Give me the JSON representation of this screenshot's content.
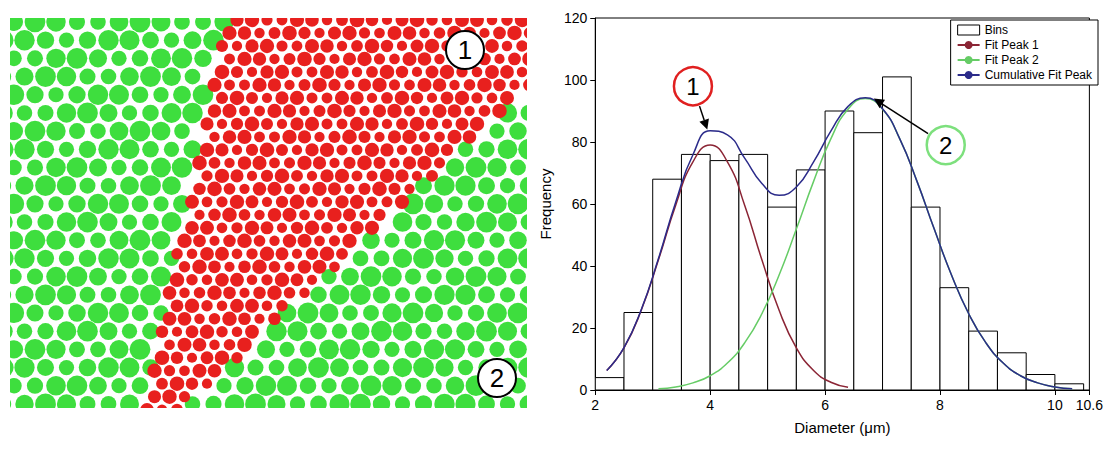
{
  "image_panel": {
    "labels": [
      "1",
      "2"
    ],
    "colors": [
      "#e8201e",
      "#3ede3e"
    ]
  },
  "chart_data": {
    "type": "histogram",
    "xlabel": "Diameter (μm)",
    "ylabel": "Frequency",
    "xlim": [
      2,
      10.6
    ],
    "xticks": [
      2,
      4,
      6,
      8,
      10
    ],
    "ylim": [
      0,
      120
    ],
    "yticks": [
      0,
      20,
      40,
      60,
      80,
      100,
      120
    ],
    "grid": false,
    "legend": "upper right",
    "series": [
      {
        "name": "Bins",
        "type": "histogram",
        "color": "#ffffff",
        "bins": [
          2,
          2.5,
          3,
          3.5,
          4,
          4.5,
          5,
          5.5,
          6,
          6.5,
          7,
          7.5,
          8,
          8.5,
          9,
          9.5,
          10,
          10.5
        ],
        "values": [
          4,
          25,
          68,
          76,
          74,
          76,
          59,
          71,
          90,
          83,
          101,
          59,
          33,
          19,
          12,
          5,
          2
        ]
      },
      {
        "name": "Fit Peak 1",
        "type": "line",
        "color": "#8b2535",
        "x": [
          2.2,
          2.5,
          2.8,
          3.1,
          3.4,
          3.7,
          4.0,
          4.3,
          4.6,
          4.9,
          5.2,
          5.5,
          5.8,
          6.1,
          6.4
        ],
        "values": [
          6.3,
          13.6,
          25.7,
          42.0,
          59.6,
          73.6,
          79.0,
          73.6,
          59.6,
          42.0,
          25.7,
          13.6,
          6.3,
          2.5,
          0.9
        ]
      },
      {
        "name": "Fit Peak 2",
        "type": "line",
        "color": "#66cc66",
        "x": [
          3.1,
          3.4,
          3.7,
          4.0,
          4.3,
          4.6,
          4.9,
          5.2,
          5.5,
          5.8,
          6.1,
          6.4,
          6.7,
          7.0,
          7.3,
          7.6,
          7.9,
          8.2,
          8.5,
          8.8,
          9.1,
          9.4,
          9.7,
          10.0,
          10.3
        ],
        "values": [
          0.4,
          1.0,
          2.3,
          4.6,
          8.7,
          15.2,
          24.6,
          37.1,
          51.9,
          67.3,
          81.0,
          90.6,
          94.0,
          90.6,
          81.0,
          67.3,
          51.9,
          37.1,
          24.6,
          15.2,
          8.7,
          4.6,
          2.3,
          1.0,
          0.4
        ]
      },
      {
        "name": "Cumulative Fit Peak",
        "type": "line",
        "color": "#2b2b8a",
        "x": [
          2.2,
          2.5,
          2.8,
          3.1,
          3.4,
          3.7,
          4.0,
          4.3,
          4.6,
          4.9,
          5.2,
          5.5,
          5.8,
          6.1,
          6.4,
          6.7,
          7.0,
          7.3,
          7.6,
          7.9,
          8.2,
          8.5,
          8.8,
          9.1,
          9.4,
          9.7,
          10.0,
          10.3
        ],
        "values": [
          6.3,
          13.7,
          25.9,
          42.4,
          60.6,
          75.9,
          83.6,
          82.3,
          74.8,
          66.6,
          62.8,
          65.5,
          73.6,
          83.5,
          91.5,
          94.3,
          90.7,
          81.0,
          67.3,
          51.9,
          37.1,
          24.6,
          15.2,
          8.7,
          4.6,
          2.3,
          1.0,
          0.4
        ]
      }
    ],
    "annotations": [
      {
        "text": "1",
        "x": 3.7,
        "y": 98,
        "arrow_x": 3.95,
        "arrow_y": 84,
        "color": "#e02020"
      },
      {
        "text": "2",
        "x": 8.1,
        "y": 79,
        "arrow_x": 6.85,
        "arrow_y": 94,
        "color": "#7de07d"
      }
    ]
  }
}
